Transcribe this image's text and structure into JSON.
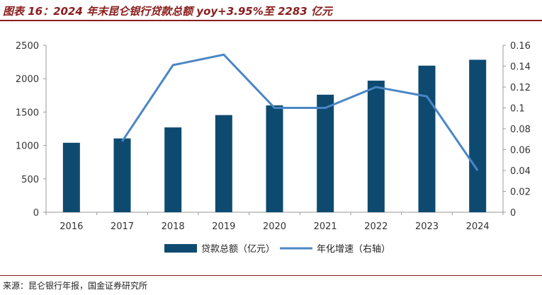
{
  "title": "图表 16：2024 年末昆仑银行贷款总额 yoy+3.95%至 2283 亿元",
  "source": "来源：昆仑银行年报，国金证券研究所",
  "colors": {
    "bar": "#0e4a70",
    "line": "#4a86c5",
    "title": "#8b1c1c"
  },
  "chart_data": {
    "type": "bar+line",
    "categories": [
      "2016",
      "2017",
      "2018",
      "2019",
      "2020",
      "2021",
      "2022",
      "2023",
      "2024"
    ],
    "series": [
      {
        "name": "贷款总额（亿元）",
        "type": "bar",
        "axis": "left",
        "values": [
          1040,
          1105,
          1270,
          1455,
          1600,
          1760,
          1970,
          2195,
          2283
        ]
      },
      {
        "name": "年化增速（右轴）",
        "type": "line",
        "axis": "right",
        "values": [
          null,
          0.068,
          0.141,
          0.151,
          0.1,
          0.1,
          0.12,
          0.111,
          0.04
        ]
      }
    ],
    "y_left": {
      "min": 0,
      "max": 2500,
      "ticks": [
        "0",
        "500",
        "1000",
        "1500",
        "2000",
        "2500"
      ]
    },
    "y_right": {
      "min": 0,
      "max": 0.16,
      "ticks": [
        "0",
        "0.02",
        "0.04",
        "0.06",
        "0.08",
        "0.1",
        "0.12",
        "0.14",
        "0.16"
      ]
    },
    "grid": false,
    "legend_position": "bottom"
  }
}
